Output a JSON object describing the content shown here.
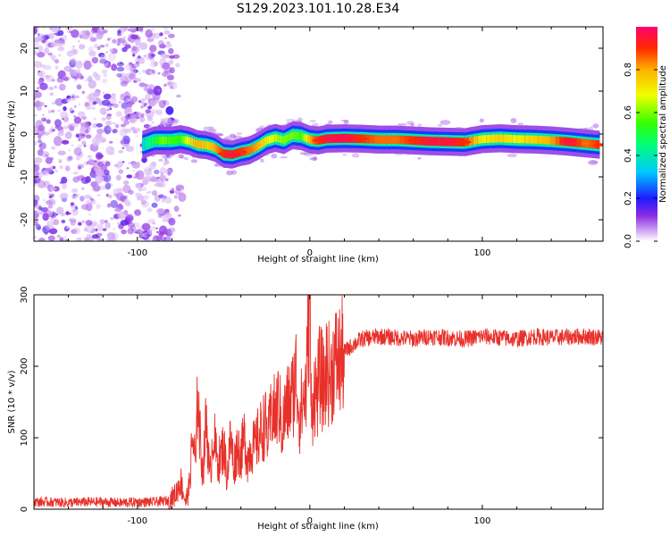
{
  "figure_title": "S129.2023.101.10.28.E34",
  "colorbar": {
    "label": "Normalized spectral amplitude",
    "ticks": [
      "0.0",
      "0.2",
      "0.4",
      "0.6",
      "0.8"
    ],
    "tick_values": [
      0.0,
      0.2,
      0.4,
      0.6,
      0.8
    ],
    "range": [
      0,
      1
    ]
  },
  "chart_data": [
    {
      "type": "heatmap",
      "xlabel": "Height of straight line (km)",
      "ylabel": "Frequency (Hz)",
      "xlim": [
        -160,
        170
      ],
      "ylim": [
        -25,
        25
      ],
      "xticks": [
        -100,
        0,
        100
      ],
      "xtick_labels": [
        "-100",
        "0",
        "100"
      ],
      "yticks": [
        -20,
        -10,
        0,
        10,
        20
      ],
      "ytick_labels": [
        "-20",
        "-10",
        "0",
        "10",
        "20"
      ],
      "noise_region_x": [
        -160,
        -80
      ],
      "ridge": {
        "x": [
          -97,
          -90,
          -85,
          -80,
          -75,
          -70,
          -65,
          -60,
          -55,
          -50,
          -45,
          -40,
          -35,
          -30,
          -25,
          -20,
          -15,
          -10,
          -5,
          0,
          5,
          10,
          20,
          30,
          40,
          50,
          60,
          70,
          80,
          90,
          100,
          110,
          120,
          130,
          140,
          150,
          160,
          168
        ],
        "freq": [
          -2.5,
          -1.5,
          -1.5,
          -1.5,
          -1.2,
          -1.6,
          -2.4,
          -2.6,
          -3.2,
          -4.6,
          -4.8,
          -4.2,
          -3.8,
          -2.8,
          -1.5,
          -0.9,
          -1.4,
          -0.3,
          -0.5,
          -1.3,
          -1.5,
          -1.1,
          -1.0,
          -1.1,
          -1.3,
          -1.3,
          -1.5,
          -1.7,
          -1.8,
          -1.9,
          -1.2,
          -1.0,
          -1.2,
          -1.3,
          -1.5,
          -1.8,
          -2.2,
          -2.5
        ],
        "amplitude": [
          0.35,
          0.5,
          0.6,
          0.55,
          0.55,
          0.7,
          0.8,
          0.75,
          0.8,
          0.9,
          0.95,
          0.9,
          0.85,
          0.8,
          0.7,
          0.65,
          0.6,
          0.6,
          0.55,
          0.8,
          0.9,
          0.95,
          0.98,
          0.9,
          0.85,
          0.85,
          0.9,
          0.95,
          0.95,
          0.9,
          0.7,
          0.75,
          0.7,
          0.75,
          0.8,
          0.95,
          0.85,
          0.9
        ]
      }
    },
    {
      "type": "line",
      "xlabel": "Height of straight line (km)",
      "ylabel": "SNR (10 * v/v)",
      "xlim": [
        -160,
        170
      ],
      "ylim": [
        0,
        300
      ],
      "xticks": [
        -100,
        0,
        100
      ],
      "xtick_labels": [
        "-100",
        "0",
        "100"
      ],
      "yticks": [
        0,
        100,
        200,
        300
      ],
      "ytick_labels": [
        "0",
        "100",
        "200",
        "300"
      ],
      "color": "#e8302a",
      "series": [
        {
          "x": [
            -160,
            -150,
            -140,
            -130,
            -120,
            -110,
            -100,
            -90,
            -82,
            -78,
            -75,
            -72,
            -70,
            -68,
            -66,
            -65,
            -64,
            -62,
            -60,
            -58,
            -56,
            -54,
            -52,
            -50,
            -48,
            -46,
            -44,
            -42,
            -40,
            -38,
            -36,
            -34,
            -32,
            -30,
            -28,
            -26,
            -24,
            -22,
            -20,
            -18,
            -16,
            -14,
            -12,
            -10,
            -8,
            -6,
            -4,
            -2,
            -1,
            0,
            1,
            2,
            4,
            6,
            8,
            10,
            12,
            14,
            16,
            18,
            20,
            25,
            30,
            40,
            50,
            60,
            70,
            80,
            90,
            100,
            110,
            120,
            130,
            140,
            150,
            160,
            170
          ],
          "y": [
            10,
            10,
            9,
            10,
            10,
            9,
            10,
            10,
            12,
            20,
            40,
            10,
            30,
            100,
            60,
            180,
            110,
            50,
            130,
            40,
            110,
            70,
            70,
            90,
            45,
            100,
            60,
            90,
            75,
            100,
            70,
            90,
            85,
            100,
            110,
            120,
            100,
            140,
            130,
            150,
            110,
            140,
            150,
            160,
            190,
            130,
            150,
            170,
            260,
            300,
            100,
            170,
            160,
            190,
            170,
            200,
            180,
            210,
            205,
            210,
            220,
            230,
            238,
            242,
            240,
            238,
            242,
            240,
            238,
            242,
            240,
            238,
            242,
            240,
            241,
            242,
            240
          ]
        }
      ]
    }
  ]
}
